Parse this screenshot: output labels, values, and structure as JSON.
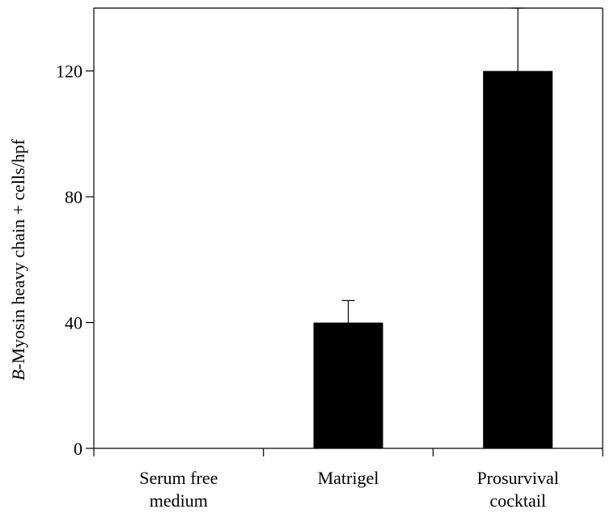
{
  "chart_data": {
    "type": "bar",
    "categories": [
      [
        "Serum free",
        "medium"
      ],
      [
        "Matrigel"
      ],
      [
        "Prosurvival",
        "cocktail"
      ]
    ],
    "values": [
      0,
      40,
      120
    ],
    "errors": [
      0,
      7,
      20
    ],
    "ylabel_italic": "B",
    "ylabel_rest": "-Myosin heavy chain + cells/hpf",
    "xlabel": "",
    "ylim": [
      0,
      140
    ],
    "yticks": [
      0,
      40,
      80,
      120
    ],
    "bar_color": "#000000",
    "grid": false
  }
}
